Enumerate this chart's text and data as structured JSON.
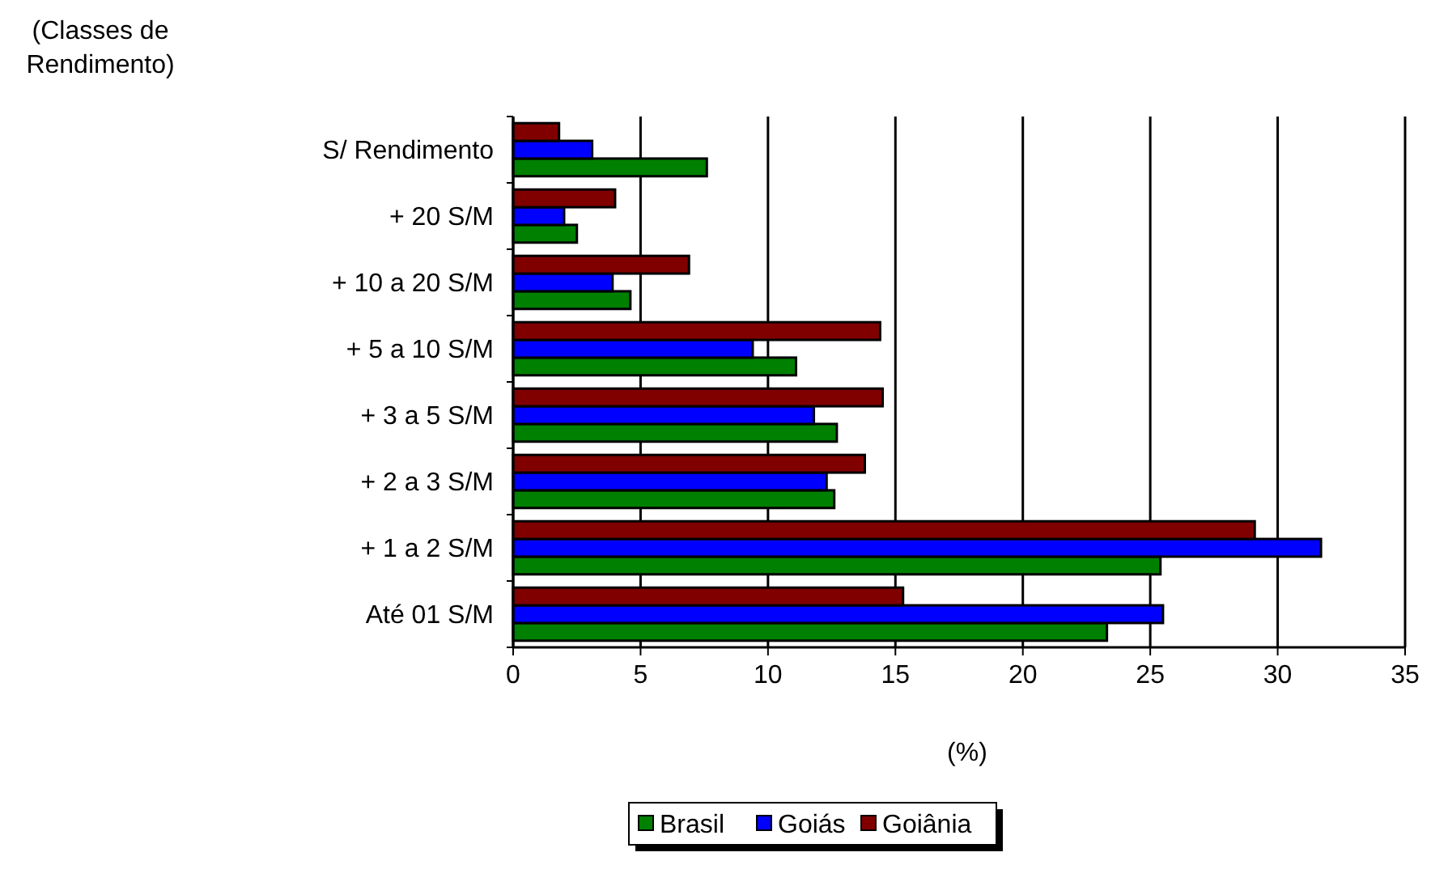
{
  "chart_data": {
    "type": "bar",
    "orientation": "horizontal",
    "xlabel": "(%)",
    "annotations": [
      "(Classes de Rendimento)"
    ],
    "categories": [
      "S/ Rendimento",
      "+ 20 S/M",
      "+ 10 a 20 S/M",
      "+ 5 a 10 S/M",
      "+ 3 a 5 S/M",
      "+ 2 a 3 S/M",
      "+ 1 a 2 S/M",
      "Até 01 S/M"
    ],
    "series": [
      {
        "name": "Brasil",
        "color": "#008000",
        "values": [
          7.6,
          2.5,
          4.6,
          11.1,
          12.7,
          12.6,
          25.4,
          23.3
        ]
      },
      {
        "name": "Goiás",
        "color": "#0000ff",
        "values": [
          3.1,
          2.0,
          3.9,
          9.4,
          11.8,
          12.3,
          31.7,
          25.5
        ]
      },
      {
        "name": "Goiânia",
        "color": "#800000",
        "values": [
          1.8,
          4.0,
          6.9,
          14.4,
          14.5,
          13.8,
          29.1,
          15.3
        ]
      }
    ],
    "xlim": [
      0,
      35
    ],
    "xticks": [
      0,
      5,
      10,
      15,
      20,
      25,
      30,
      35
    ],
    "grid": "x",
    "legend": "bottom"
  }
}
